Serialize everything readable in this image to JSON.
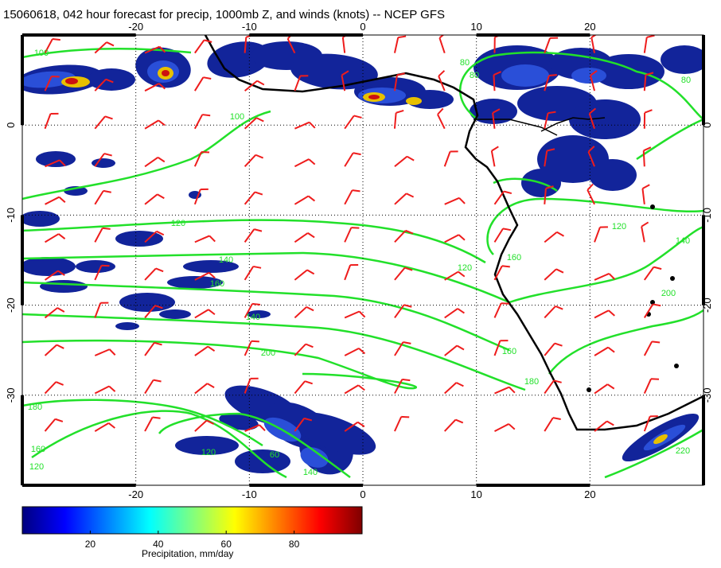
{
  "title": "15060618, 042 hour forecast for precip, 1000mb Z, and winds (knots) -- NCEP GFS",
  "map": {
    "lon_ticks": [
      "-20",
      "-10",
      "0",
      "10",
      "20"
    ],
    "lat_ticks": [
      "0",
      "-10",
      "-20",
      "-30"
    ],
    "lon_range": [
      -30,
      30
    ],
    "lat_range": [
      -40,
      10
    ],
    "grid": "dotted",
    "colors": {
      "contour": "#22e02a",
      "wind_barb": "#ee1c1c",
      "coast": "#000000"
    },
    "contour_labels": [
      "100",
      "100",
      "80",
      "80",
      "80",
      "120",
      "140",
      "160",
      "120",
      "120",
      "140",
      "160",
      "180",
      "200",
      "200",
      "180",
      "160",
      "120",
      "140",
      "160",
      "220",
      "140",
      "120",
      "60"
    ]
  },
  "colorbar": {
    "ticks": [
      "20",
      "40",
      "60",
      "80"
    ],
    "range": [
      0,
      100
    ],
    "label": "Precipitation, mm/day"
  }
}
